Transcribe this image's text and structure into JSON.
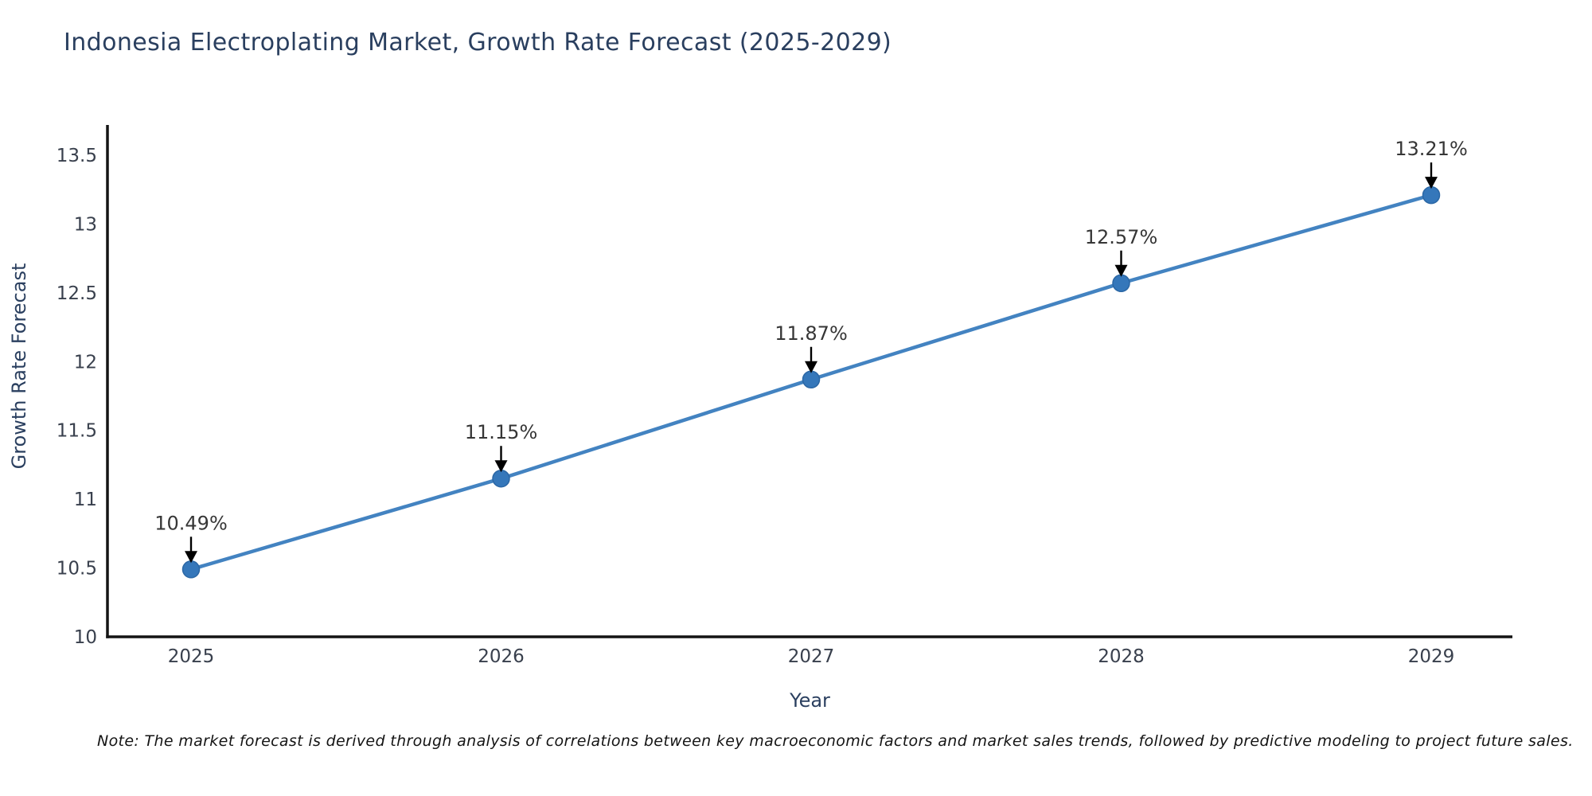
{
  "chart_data": {
    "type": "line",
    "title": "Indonesia Electroplating Market, Growth Rate Forecast (2025-2029)",
    "xlabel": "Year",
    "ylabel": "Growth Rate Forecast",
    "categories": [
      "2025",
      "2026",
      "2027",
      "2028",
      "2029"
    ],
    "values": [
      10.49,
      11.15,
      11.87,
      12.57,
      13.21
    ],
    "point_labels": [
      "10.49%",
      "11.15%",
      "11.87%",
      "12.57%",
      "13.21%"
    ],
    "ytick_values": [
      10,
      10.5,
      11,
      11.5,
      12,
      12.5,
      13,
      13.5
    ],
    "ytick_labels": [
      "10",
      "10.5",
      "11",
      "11.5",
      "12",
      "12.5",
      "13",
      "13.5"
    ],
    "ylim": [
      10,
      13.72
    ],
    "grid": false,
    "legend": "none",
    "series_name": "Growth Rate Forecast",
    "annotation_style": "down-arrow"
  },
  "colors": {
    "line": "#4383c1",
    "marker_fill": "#3577ba",
    "marker_edge": "#2b67a5",
    "spine": "#141414",
    "tick_label": "#39404d",
    "title": "#2a3f5f",
    "axis_label": "#2a3f5f",
    "annotation_text": "#363636",
    "arrow": "#000000",
    "background": "#ffffff"
  },
  "note": {
    "text": "Note: The market forecast is derived through analysis of correlations between key macroeconomic factors and market sales trends, followed by predictive modeling to project future sales."
  }
}
